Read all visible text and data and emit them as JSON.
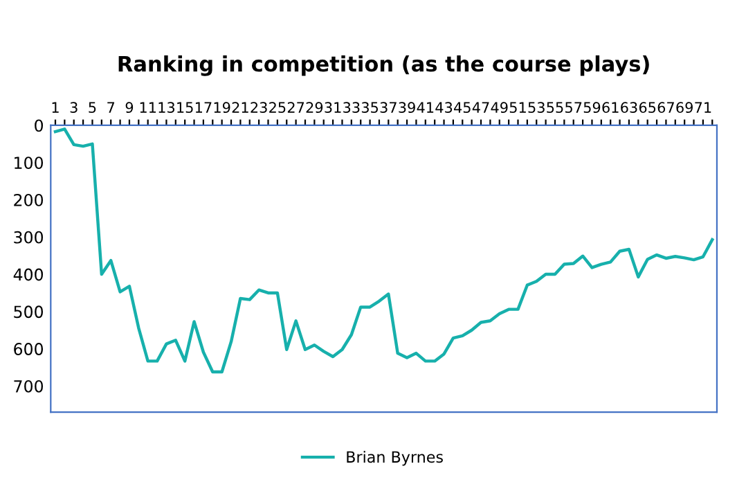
{
  "chart_data": {
    "type": "line",
    "title": "Ranking in competition (as the course plays)",
    "categories": [
      "1",
      null,
      "3",
      null,
      "5",
      null,
      "7",
      null,
      "9",
      null,
      "11",
      null,
      "13",
      null,
      "15",
      null,
      "17",
      null,
      "19",
      null,
      "21",
      null,
      "23",
      null,
      "25",
      null,
      "27",
      null,
      "29",
      null,
      "31",
      null,
      "33",
      null,
      "35",
      null,
      "37",
      null,
      "39",
      null,
      "41",
      null,
      "43",
      null,
      "45",
      null,
      "47",
      null,
      "49",
      null,
      "51",
      null,
      "53",
      null,
      "55",
      null,
      "57",
      null,
      "59",
      null,
      "61",
      null,
      "63",
      null,
      "65",
      null,
      "67",
      null,
      "69",
      null,
      "71",
      null
    ],
    "series": [
      {
        "name": "Brian Byrnes",
        "color": "#17b0ac",
        "values": [
          17,
          10,
          52,
          56,
          50,
          400,
          363,
          447,
          432,
          544,
          633,
          633,
          587,
          577,
          633,
          527,
          609,
          662,
          662,
          581,
          465,
          468,
          442,
          450,
          450,
          602,
          525,
          602,
          590,
          607,
          621,
          602,
          562,
          488,
          488,
          472,
          453,
          612,
          624,
          612,
          633,
          633,
          614,
          571,
          565,
          550,
          529,
          525,
          506,
          494,
          494,
          429,
          419,
          400,
          400,
          373,
          371,
          351,
          382,
          373,
          367,
          338,
          333,
          407,
          360,
          348,
          357,
          352,
          356,
          361,
          353,
          307
        ]
      }
    ],
    "ylim": [
      770,
      0
    ],
    "yticks": [
      0,
      100,
      200,
      300,
      400,
      500,
      600,
      700
    ],
    "grid": false,
    "legend": "bottom",
    "marker": "none",
    "line_style": "solid"
  }
}
